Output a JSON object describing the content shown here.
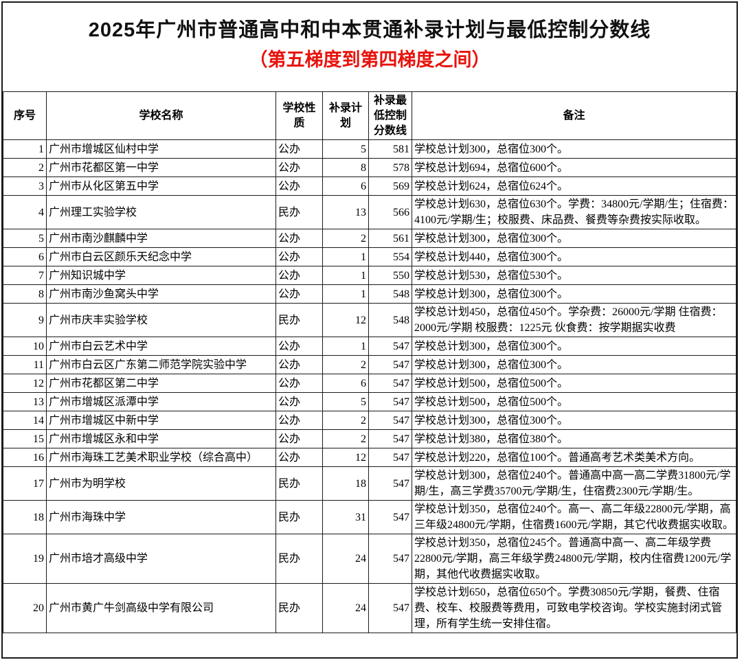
{
  "title": "2025年广州市普通高中和中本贯通补录计划与最低控制分数线",
  "subtitle": "（第五梯度到第四梯度之间）",
  "subtitle_color": "#e8120c",
  "table": {
    "headers": {
      "seq": "序号",
      "name": "学校名称",
      "type": "学校性质",
      "plan": "补录计划",
      "score": "补录最低控制分数线",
      "remark": "备注"
    },
    "rows": [
      {
        "seq": "1",
        "name": "广州市增城区仙村中学",
        "type": "公办",
        "plan": "5",
        "score": "581",
        "remark": "学校总计划300，总宿位300个。"
      },
      {
        "seq": "2",
        "name": "广州市花都区第一中学",
        "type": "公办",
        "plan": "8",
        "score": "578",
        "remark": "学校总计划694，总宿位600个。"
      },
      {
        "seq": "3",
        "name": "广州市从化区第五中学",
        "type": "公办",
        "plan": "6",
        "score": "569",
        "remark": "学校总计划624，总宿位624个。"
      },
      {
        "seq": "4",
        "name": "广州理工实验学校",
        "type": "民办",
        "plan": "13",
        "score": "566",
        "remark": "学校总计划630，总宿位630个。学费：34800元/学期/生；住宿费：4100元/学期/生；校服费、床品费、餐费等杂费按实际收取。"
      },
      {
        "seq": "5",
        "name": "广州市南沙麒麟中学",
        "type": "公办",
        "plan": "2",
        "score": "561",
        "remark": "学校总计划300，总宿位300个。"
      },
      {
        "seq": "6",
        "name": "广州市白云区颜乐天纪念中学",
        "type": "公办",
        "plan": "1",
        "score": "554",
        "remark": "学校总计划440，总宿位300个。"
      },
      {
        "seq": "7",
        "name": "广州知识城中学",
        "type": "公办",
        "plan": "1",
        "score": "550",
        "remark": "学校总计划530，总宿位530个。"
      },
      {
        "seq": "8",
        "name": "广州市南沙鱼窝头中学",
        "type": "公办",
        "plan": "1",
        "score": "548",
        "remark": "学校总计划300，总宿位300个。"
      },
      {
        "seq": "9",
        "name": "广州市庆丰实验学校",
        "type": "民办",
        "plan": "12",
        "score": "548",
        "remark": "学校总计划450，总宿位450个。学杂费：26000元/学期 住宿费：2000元/学期 校服费：1225元 伙食费：按学期据实收费"
      },
      {
        "seq": "10",
        "name": "广州市白云艺术中学",
        "type": "公办",
        "plan": "1",
        "score": "547",
        "remark": "学校总计划300，总宿位300个。"
      },
      {
        "seq": "11",
        "name": "广州市白云区广东第二师范学院实验中学",
        "type": "公办",
        "plan": "2",
        "score": "547",
        "remark": "学校总计划300，总宿位300个。"
      },
      {
        "seq": "12",
        "name": "广州市花都区第二中学",
        "type": "公办",
        "plan": "6",
        "score": "547",
        "remark": "学校总计划500，总宿位500个。"
      },
      {
        "seq": "13",
        "name": "广州市增城区派潭中学",
        "type": "公办",
        "plan": "5",
        "score": "547",
        "remark": "学校总计划500，总宿位500个。"
      },
      {
        "seq": "14",
        "name": "广州市增城区中新中学",
        "type": "公办",
        "plan": "2",
        "score": "547",
        "remark": "学校总计划300，总宿位300个。"
      },
      {
        "seq": "15",
        "name": "广州市增城区永和中学",
        "type": "公办",
        "plan": "2",
        "score": "547",
        "remark": "学校总计划380，总宿位380个。"
      },
      {
        "seq": "16",
        "name": "广州市海珠工艺美术职业学校（综合高中）",
        "type": "公办",
        "plan": "12",
        "score": "547",
        "remark": "学校总计划220，总宿位100个。普通高考艺术类美术方向。"
      },
      {
        "seq": "17",
        "name": "广州市为明学校",
        "type": "民办",
        "plan": "18",
        "score": "547",
        "remark": "学校总计划300，总宿位240个。普通高中高一高二学费31800元/学期/生，高三学费35700元/学期/生，住宿费2300元/学期/生。"
      },
      {
        "seq": "18",
        "name": "广州市海珠中学",
        "type": "民办",
        "plan": "31",
        "score": "547",
        "remark": "学校总计划350，总宿位240个。高一、高二年级22800元/学期，高三年级24800元/学期，住宿费1600元/学期，其它代收费据实收取。"
      },
      {
        "seq": "19",
        "name": "广州市培才高级中学",
        "type": "民办",
        "plan": "24",
        "score": "547",
        "remark": "学校总计划350，总宿位245个。普通高中高一、高二年级学费22800元/学期，高三年级学费24800元/学期，校内住宿费1200元/学期，其他代收费据实收取。"
      },
      {
        "seq": "20",
        "name": "广州市黄广牛剑高级中学有限公司",
        "type": "民办",
        "plan": "24",
        "score": "547",
        "remark": "学校总计划650，总宿位650个。学费30850元/学期，餐费、住宿费、校车、校服费等费用，可致电学校咨询。学校实施封闭式管理，所有学生统一安排住宿。"
      }
    ]
  }
}
